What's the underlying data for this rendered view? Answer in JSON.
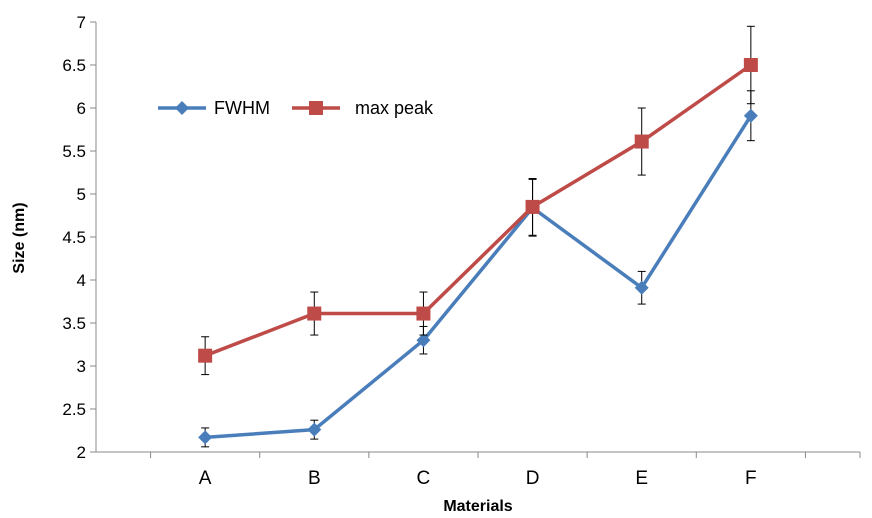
{
  "chart_data": {
    "type": "line",
    "title": "",
    "xlabel": "Materials",
    "ylabel": "Size (nm)",
    "categories": [
      "A",
      "B",
      "C",
      "D",
      "E",
      "F"
    ],
    "ylim": [
      2,
      7
    ],
    "yticks": [
      2,
      2.5,
      3,
      3.5,
      4,
      4.5,
      5,
      5.5,
      6,
      6.5,
      7
    ],
    "ytick_labels": [
      "2",
      "2.5",
      "3",
      "3.5",
      "4",
      "4.5",
      "5",
      "5.5",
      "6",
      "6.5",
      "7"
    ],
    "grid": false,
    "legend_position": "upper-left",
    "series": [
      {
        "name": "FWHM",
        "marker": "diamond",
        "color": "#4a7ebb",
        "values": [
          2.17,
          2.26,
          3.3,
          4.84,
          3.91,
          5.91
        ],
        "errors": [
          0.11,
          0.11,
          0.16,
          0.33,
          0.19,
          0.29
        ]
      },
      {
        "name": "max peak",
        "marker": "square",
        "color": "#be4b48",
        "values": [
          3.12,
          3.61,
          3.61,
          4.85,
          5.61,
          6.5
        ],
        "errors": [
          0.22,
          0.25,
          0.25,
          0.33,
          0.39,
          0.45
        ]
      }
    ]
  }
}
